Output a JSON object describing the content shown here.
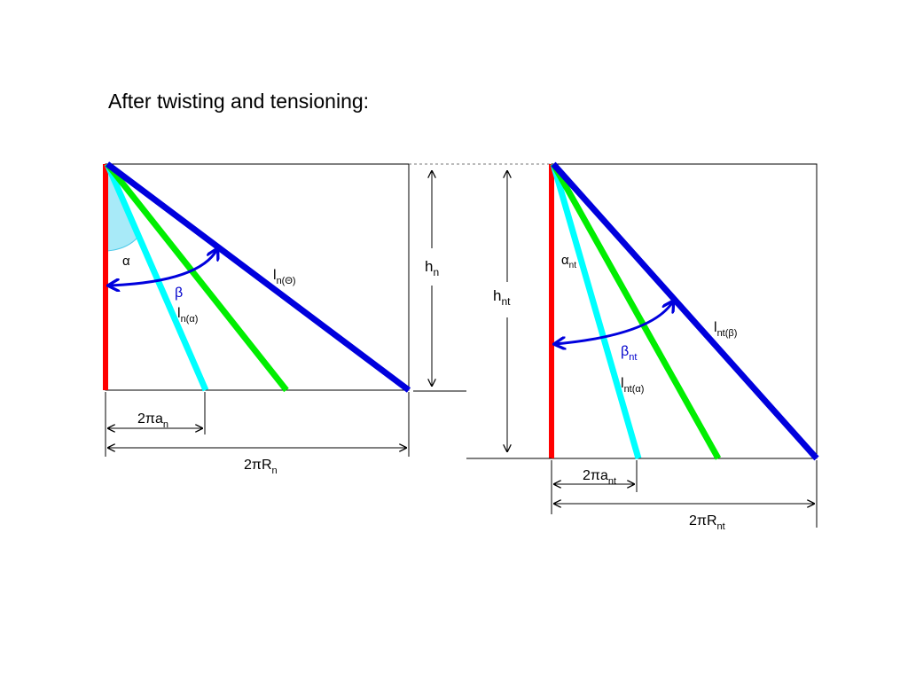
{
  "title": "After twisting and tensioning:",
  "colors": {
    "red": "#ff0000",
    "cyan": "#00ffff",
    "green": "#00ee00",
    "blue": "#0000dd",
    "angle_fill": "#a8eaf8",
    "label_blue": "#0000cc"
  },
  "left": {
    "alpha": "α",
    "beta": "β",
    "l_theta": {
      "base": "l",
      "sub": "n(Θ)"
    },
    "l_alpha": {
      "base": "l",
      "sub": "n(α)"
    },
    "h": {
      "base": "h",
      "sub": "n"
    },
    "a": {
      "base": "2πa",
      "sub": "n"
    },
    "R": {
      "base": "2πR",
      "sub": "n"
    }
  },
  "right": {
    "alpha": {
      "base": "α",
      "sub": "nt"
    },
    "beta": {
      "base": "β",
      "sub": "nt"
    },
    "l_beta": {
      "base": "l",
      "sub": "nt(β)"
    },
    "l_alpha": {
      "base": "l",
      "sub": "nt(α)"
    },
    "h": {
      "base": "h",
      "sub": "nt"
    },
    "a": {
      "base": "2πa",
      "sub": "nt"
    },
    "R": {
      "base": "2πR",
      "sub": "nt"
    }
  }
}
